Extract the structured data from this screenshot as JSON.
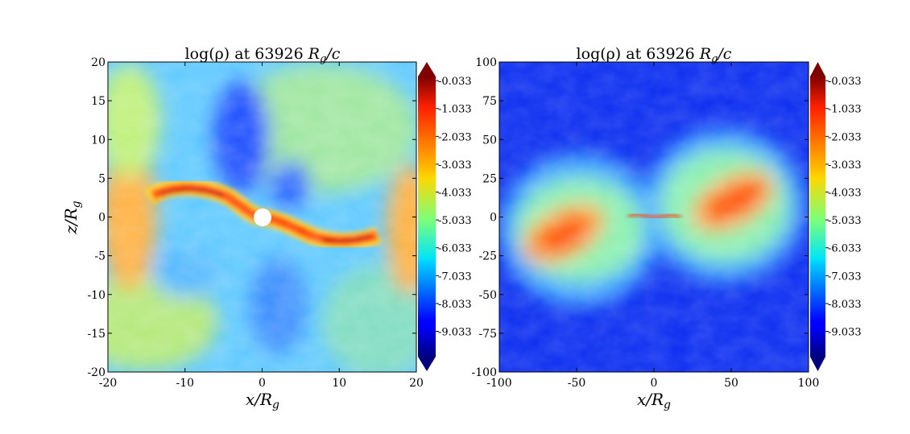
{
  "chart_data": [
    {
      "type": "heatmap",
      "title": "log(ρ) at 63926 R_g/c",
      "xlabel": "x/R_g",
      "ylabel": "z/R_g",
      "xlim": [
        -20,
        20
      ],
      "ylim": [
        -20,
        20
      ],
      "xticks": [
        -20,
        -10,
        0,
        10,
        20
      ],
      "yticks": [
        -20,
        -15,
        -10,
        -5,
        0,
        5,
        10,
        15,
        20
      ],
      "colorbar": {
        "ticks": [
          "-0.033",
          "-1.033",
          "-2.033",
          "-3.033",
          "-4.033",
          "-5.033",
          "-6.033",
          "-7.033",
          "-8.033",
          "-9.033"
        ],
        "range": [
          -10,
          0
        ],
        "colormap": "jet"
      },
      "features": {
        "black_hole": "white disk at origin",
        "disk": "thin warped high-density disk crossing origin"
      }
    },
    {
      "type": "heatmap",
      "title": "log(ρ) at 63926 R_g/c",
      "xlabel": "x/R_g",
      "ylabel": "",
      "xlim": [
        -100,
        100
      ],
      "ylim": [
        -100,
        100
      ],
      "xticks": [
        -100,
        -50,
        0,
        50,
        100
      ],
      "yticks": [
        -100,
        -75,
        -50,
        -25,
        0,
        25,
        50,
        75,
        100
      ],
      "colorbar": {
        "ticks": [
          "-0.033",
          "-1.033",
          "-2.033",
          "-3.033",
          "-4.033",
          "-5.033",
          "-6.033",
          "-7.033",
          "-8.033",
          "-9.033"
        ],
        "range": [
          -10,
          0
        ],
        "colormap": "jet"
      },
      "features": {
        "disk": "two tilted high-density lobes on either side of the origin"
      }
    }
  ],
  "labels": {
    "title_prefix": "log(ρ) at 63926 ",
    "title_unit_main": "R",
    "title_unit_sub": "g",
    "title_unit_suffix": "/c",
    "x_main": "x/R",
    "x_sub": "g",
    "y_main": "z/R",
    "y_sub": "g"
  }
}
